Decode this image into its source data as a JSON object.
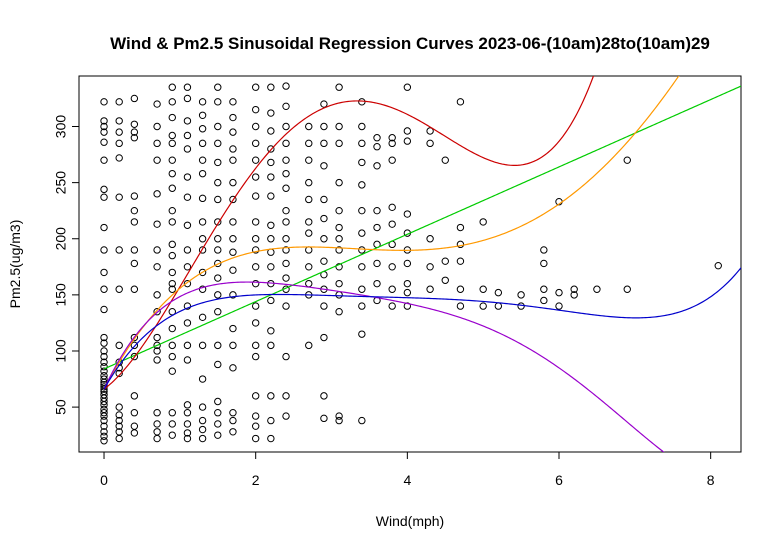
{
  "chart_data": {
    "type": "scatter",
    "title": "Wind & Pm2.5 Sinusoidal Regression Curves 2023-06-(10am)28to(10am)29",
    "xlabel": "Wind(mph)",
    "ylabel": "Pm2.5(ug/m3)",
    "xlim": [
      -0.33,
      8.4
    ],
    "ylim": [
      10,
      345
    ],
    "x_ticks": [
      0,
      2,
      4,
      6,
      8
    ],
    "y_ticks": [
      50,
      100,
      150,
      200,
      250,
      300
    ],
    "grid": false,
    "legend": "none",
    "points": [
      [
        0,
        20
      ],
      [
        0,
        24
      ],
      [
        0,
        28
      ],
      [
        0,
        33
      ],
      [
        0,
        38
      ],
      [
        0,
        42
      ],
      [
        0,
        45
      ],
      [
        0,
        48
      ],
      [
        0,
        52
      ],
      [
        0,
        55
      ],
      [
        0,
        58
      ],
      [
        0,
        61
      ],
      [
        0,
        64
      ],
      [
        0,
        66
      ],
      [
        0,
        68
      ],
      [
        0,
        70
      ],
      [
        0,
        72
      ],
      [
        0,
        75
      ],
      [
        0,
        78
      ],
      [
        0,
        82
      ],
      [
        0,
        86
      ],
      [
        0,
        90
      ],
      [
        0,
        95
      ],
      [
        0,
        100
      ],
      [
        0,
        107
      ],
      [
        0,
        112
      ],
      [
        0,
        137
      ],
      [
        0,
        155
      ],
      [
        0,
        170
      ],
      [
        0,
        190
      ],
      [
        0,
        210
      ],
      [
        0,
        237
      ],
      [
        0,
        244
      ],
      [
        0,
        270
      ],
      [
        0,
        286
      ],
      [
        0,
        295
      ],
      [
        0,
        300
      ],
      [
        0,
        305
      ],
      [
        0,
        322
      ],
      [
        0.2,
        22
      ],
      [
        0.2,
        28
      ],
      [
        0.2,
        33
      ],
      [
        0.2,
        38
      ],
      [
        0.2,
        43
      ],
      [
        0.2,
        50
      ],
      [
        0.2,
        80
      ],
      [
        0.2,
        85
      ],
      [
        0.2,
        90
      ],
      [
        0.2,
        105
      ],
      [
        0.2,
        155
      ],
      [
        0.2,
        190
      ],
      [
        0.2,
        237
      ],
      [
        0.2,
        272
      ],
      [
        0.2,
        285
      ],
      [
        0.2,
        295
      ],
      [
        0.2,
        305
      ],
      [
        0.2,
        322
      ],
      [
        0.4,
        27
      ],
      [
        0.4,
        33
      ],
      [
        0.4,
        45
      ],
      [
        0.4,
        60
      ],
      [
        0.4,
        95
      ],
      [
        0.4,
        105
      ],
      [
        0.4,
        112
      ],
      [
        0.4,
        155
      ],
      [
        0.4,
        178
      ],
      [
        0.4,
        190
      ],
      [
        0.4,
        215
      ],
      [
        0.4,
        225
      ],
      [
        0.4,
        238
      ],
      [
        0.4,
        290
      ],
      [
        0.4,
        295
      ],
      [
        0.4,
        302
      ],
      [
        0.4,
        325
      ],
      [
        0.7,
        22
      ],
      [
        0.7,
        28
      ],
      [
        0.7,
        35
      ],
      [
        0.7,
        45
      ],
      [
        0.7,
        92
      ],
      [
        0.7,
        100
      ],
      [
        0.7,
        105
      ],
      [
        0.7,
        112
      ],
      [
        0.7,
        135
      ],
      [
        0.7,
        150
      ],
      [
        0.7,
        175
      ],
      [
        0.7,
        190
      ],
      [
        0.7,
        213
      ],
      [
        0.7,
        240
      ],
      [
        0.7,
        270
      ],
      [
        0.7,
        285
      ],
      [
        0.7,
        300
      ],
      [
        0.7,
        320
      ],
      [
        0.9,
        25
      ],
      [
        0.9,
        35
      ],
      [
        0.9,
        45
      ],
      [
        0.9,
        82
      ],
      [
        0.9,
        95
      ],
      [
        0.9,
        105
      ],
      [
        0.9,
        120
      ],
      [
        0.9,
        135
      ],
      [
        0.9,
        155
      ],
      [
        0.9,
        160
      ],
      [
        0.9,
        170
      ],
      [
        0.9,
        185
      ],
      [
        0.9,
        195
      ],
      [
        0.9,
        215
      ],
      [
        0.9,
        225
      ],
      [
        0.9,
        245
      ],
      [
        0.9,
        258
      ],
      [
        0.9,
        270
      ],
      [
        0.9,
        285
      ],
      [
        0.9,
        292
      ],
      [
        0.9,
        308
      ],
      [
        0.9,
        322
      ],
      [
        0.9,
        335
      ],
      [
        1.1,
        22
      ],
      [
        1.1,
        27
      ],
      [
        1.1,
        35
      ],
      [
        1.1,
        45
      ],
      [
        1.1,
        52
      ],
      [
        1.1,
        92
      ],
      [
        1.1,
        105
      ],
      [
        1.1,
        125
      ],
      [
        1.1,
        140
      ],
      [
        1.1,
        160
      ],
      [
        1.1,
        175
      ],
      [
        1.1,
        190
      ],
      [
        1.1,
        212
      ],
      [
        1.1,
        237
      ],
      [
        1.1,
        255
      ],
      [
        1.1,
        280
      ],
      [
        1.1,
        292
      ],
      [
        1.1,
        305
      ],
      [
        1.1,
        325
      ],
      [
        1.1,
        335
      ],
      [
        1.3,
        22
      ],
      [
        1.3,
        30
      ],
      [
        1.3,
        38
      ],
      [
        1.3,
        50
      ],
      [
        1.3,
        75
      ],
      [
        1.3,
        105
      ],
      [
        1.3,
        130
      ],
      [
        1.3,
        155
      ],
      [
        1.3,
        170
      ],
      [
        1.3,
        190
      ],
      [
        1.3,
        200
      ],
      [
        1.3,
        215
      ],
      [
        1.3,
        236
      ],
      [
        1.3,
        258
      ],
      [
        1.3,
        270
      ],
      [
        1.3,
        285
      ],
      [
        1.3,
        298
      ],
      [
        1.3,
        310
      ],
      [
        1.3,
        322
      ],
      [
        1.5,
        25
      ],
      [
        1.5,
        35
      ],
      [
        1.5,
        45
      ],
      [
        1.5,
        55
      ],
      [
        1.5,
        88
      ],
      [
        1.5,
        105
      ],
      [
        1.5,
        135
      ],
      [
        1.5,
        150
      ],
      [
        1.5,
        165
      ],
      [
        1.5,
        178
      ],
      [
        1.5,
        190
      ],
      [
        1.5,
        200
      ],
      [
        1.5,
        215
      ],
      [
        1.5,
        235
      ],
      [
        1.5,
        250
      ],
      [
        1.5,
        268
      ],
      [
        1.5,
        285
      ],
      [
        1.5,
        300
      ],
      [
        1.5,
        322
      ],
      [
        1.5,
        335
      ],
      [
        1.7,
        28
      ],
      [
        1.7,
        38
      ],
      [
        1.7,
        45
      ],
      [
        1.7,
        85
      ],
      [
        1.7,
        105
      ],
      [
        1.7,
        120
      ],
      [
        1.7,
        150
      ],
      [
        1.7,
        172
      ],
      [
        1.7,
        188
      ],
      [
        1.7,
        200
      ],
      [
        1.7,
        215
      ],
      [
        1.7,
        235
      ],
      [
        1.7,
        250
      ],
      [
        1.7,
        270
      ],
      [
        1.7,
        280
      ],
      [
        1.7,
        295
      ],
      [
        1.7,
        308
      ],
      [
        1.7,
        322
      ],
      [
        2.0,
        22
      ],
      [
        2.0,
        33
      ],
      [
        2.0,
        42
      ],
      [
        2.0,
        60
      ],
      [
        2.0,
        95
      ],
      [
        2.0,
        105
      ],
      [
        2.0,
        125
      ],
      [
        2.0,
        140
      ],
      [
        2.0,
        160
      ],
      [
        2.0,
        175
      ],
      [
        2.0,
        190
      ],
      [
        2.0,
        200
      ],
      [
        2.0,
        215
      ],
      [
        2.0,
        238
      ],
      [
        2.0,
        255
      ],
      [
        2.0,
        270
      ],
      [
        2.0,
        285
      ],
      [
        2.0,
        300
      ],
      [
        2.0,
        315
      ],
      [
        2.0,
        335
      ],
      [
        2.2,
        22
      ],
      [
        2.2,
        38
      ],
      [
        2.2,
        60
      ],
      [
        2.2,
        105
      ],
      [
        2.2,
        118
      ],
      [
        2.2,
        145
      ],
      [
        2.2,
        160
      ],
      [
        2.2,
        175
      ],
      [
        2.2,
        188
      ],
      [
        2.2,
        200
      ],
      [
        2.2,
        212
      ],
      [
        2.2,
        238
      ],
      [
        2.2,
        255
      ],
      [
        2.2,
        268
      ],
      [
        2.2,
        280
      ],
      [
        2.2,
        296
      ],
      [
        2.2,
        312
      ],
      [
        2.2,
        335
      ],
      [
        2.4,
        42
      ],
      [
        2.4,
        60
      ],
      [
        2.4,
        95
      ],
      [
        2.4,
        140
      ],
      [
        2.4,
        155
      ],
      [
        2.4,
        165
      ],
      [
        2.4,
        178
      ],
      [
        2.4,
        190
      ],
      [
        2.4,
        200
      ],
      [
        2.4,
        215
      ],
      [
        2.4,
        225
      ],
      [
        2.4,
        245
      ],
      [
        2.4,
        258
      ],
      [
        2.4,
        270
      ],
      [
        2.4,
        285
      ],
      [
        2.4,
        300
      ],
      [
        2.4,
        318
      ],
      [
        2.4,
        336
      ],
      [
        2.7,
        105
      ],
      [
        2.7,
        150
      ],
      [
        2.7,
        160
      ],
      [
        2.7,
        175
      ],
      [
        2.7,
        190
      ],
      [
        2.7,
        205
      ],
      [
        2.7,
        215
      ],
      [
        2.7,
        235
      ],
      [
        2.7,
        250
      ],
      [
        2.7,
        270
      ],
      [
        2.7,
        285
      ],
      [
        2.7,
        300
      ],
      [
        2.9,
        40
      ],
      [
        2.9,
        60
      ],
      [
        2.9,
        112
      ],
      [
        2.9,
        140
      ],
      [
        2.9,
        155
      ],
      [
        2.9,
        168
      ],
      [
        2.9,
        180
      ],
      [
        2.9,
        200
      ],
      [
        2.9,
        218
      ],
      [
        2.9,
        235
      ],
      [
        2.9,
        265
      ],
      [
        2.9,
        285
      ],
      [
        2.9,
        300
      ],
      [
        2.9,
        320
      ],
      [
        3.1,
        38
      ],
      [
        3.1,
        42
      ],
      [
        3.1,
        135
      ],
      [
        3.1,
        150
      ],
      [
        3.1,
        160
      ],
      [
        3.1,
        175
      ],
      [
        3.1,
        190
      ],
      [
        3.1,
        200
      ],
      [
        3.1,
        210
      ],
      [
        3.1,
        225
      ],
      [
        3.1,
        250
      ],
      [
        3.1,
        285
      ],
      [
        3.1,
        300
      ],
      [
        3.1,
        335
      ],
      [
        3.4,
        38
      ],
      [
        3.4,
        115
      ],
      [
        3.4,
        140
      ],
      [
        3.4,
        155
      ],
      [
        3.4,
        175
      ],
      [
        3.4,
        190
      ],
      [
        3.4,
        205
      ],
      [
        3.4,
        225
      ],
      [
        3.4,
        248
      ],
      [
        3.4,
        268
      ],
      [
        3.4,
        285
      ],
      [
        3.4,
        300
      ],
      [
        3.4,
        322
      ],
      [
        3.6,
        145
      ],
      [
        3.6,
        160
      ],
      [
        3.6,
        178
      ],
      [
        3.6,
        195
      ],
      [
        3.6,
        210
      ],
      [
        3.6,
        225
      ],
      [
        3.6,
        265
      ],
      [
        3.6,
        282
      ],
      [
        3.6,
        290
      ],
      [
        3.8,
        140
      ],
      [
        3.8,
        155
      ],
      [
        3.8,
        175
      ],
      [
        3.8,
        195
      ],
      [
        3.8,
        213
      ],
      [
        3.8,
        228
      ],
      [
        3.8,
        270
      ],
      [
        3.8,
        285
      ],
      [
        3.8,
        290
      ],
      [
        4.0,
        140
      ],
      [
        4.0,
        152
      ],
      [
        4.0,
        160
      ],
      [
        4.0,
        178
      ],
      [
        4.0,
        190
      ],
      [
        4.0,
        205
      ],
      [
        4.0,
        222
      ],
      [
        4.0,
        287
      ],
      [
        4.0,
        296
      ],
      [
        4.0,
        335
      ],
      [
        4.3,
        155
      ],
      [
        4.3,
        175
      ],
      [
        4.3,
        200
      ],
      [
        4.3,
        285
      ],
      [
        4.3,
        296
      ],
      [
        4.5,
        163
      ],
      [
        4.5,
        180
      ],
      [
        4.5,
        270
      ],
      [
        4.7,
        140
      ],
      [
        4.7,
        155
      ],
      [
        4.7,
        180
      ],
      [
        4.7,
        195
      ],
      [
        4.7,
        210
      ],
      [
        4.7,
        322
      ],
      [
        5.0,
        140
      ],
      [
        5.0,
        155
      ],
      [
        5.0,
        215
      ],
      [
        5.2,
        140
      ],
      [
        5.2,
        152
      ],
      [
        5.5,
        140
      ],
      [
        5.5,
        150
      ],
      [
        5.8,
        145
      ],
      [
        5.8,
        155
      ],
      [
        5.8,
        178
      ],
      [
        5.8,
        190
      ],
      [
        6.0,
        140
      ],
      [
        6.0,
        152
      ],
      [
        6.0,
        233
      ],
      [
        6.2,
        150
      ],
      [
        6.2,
        155
      ],
      [
        6.5,
        155
      ],
      [
        6.9,
        155
      ],
      [
        6.9,
        270
      ],
      [
        8.1,
        176
      ]
    ],
    "series": [
      {
        "color": "#00cc00",
        "coeffs": [
          84,
          30
        ]
      },
      {
        "color": "#cc0000",
        "coeffs": [
          66,
          50,
          62,
          -23,
          2.05
        ]
      },
      {
        "color": "#ff9900",
        "coeffs": [
          66,
          129,
          -45,
          6.0,
          -0.22
        ]
      },
      {
        "color": "#9900cc",
        "coeffs": [
          66,
          145,
          -81,
          20.9,
          -2.61,
          0.12
        ]
      },
      {
        "color": "#0000cc",
        "coeffs": [
          66,
          118,
          -63,
          16.08,
          -1.98,
          0.093
        ]
      }
    ]
  }
}
